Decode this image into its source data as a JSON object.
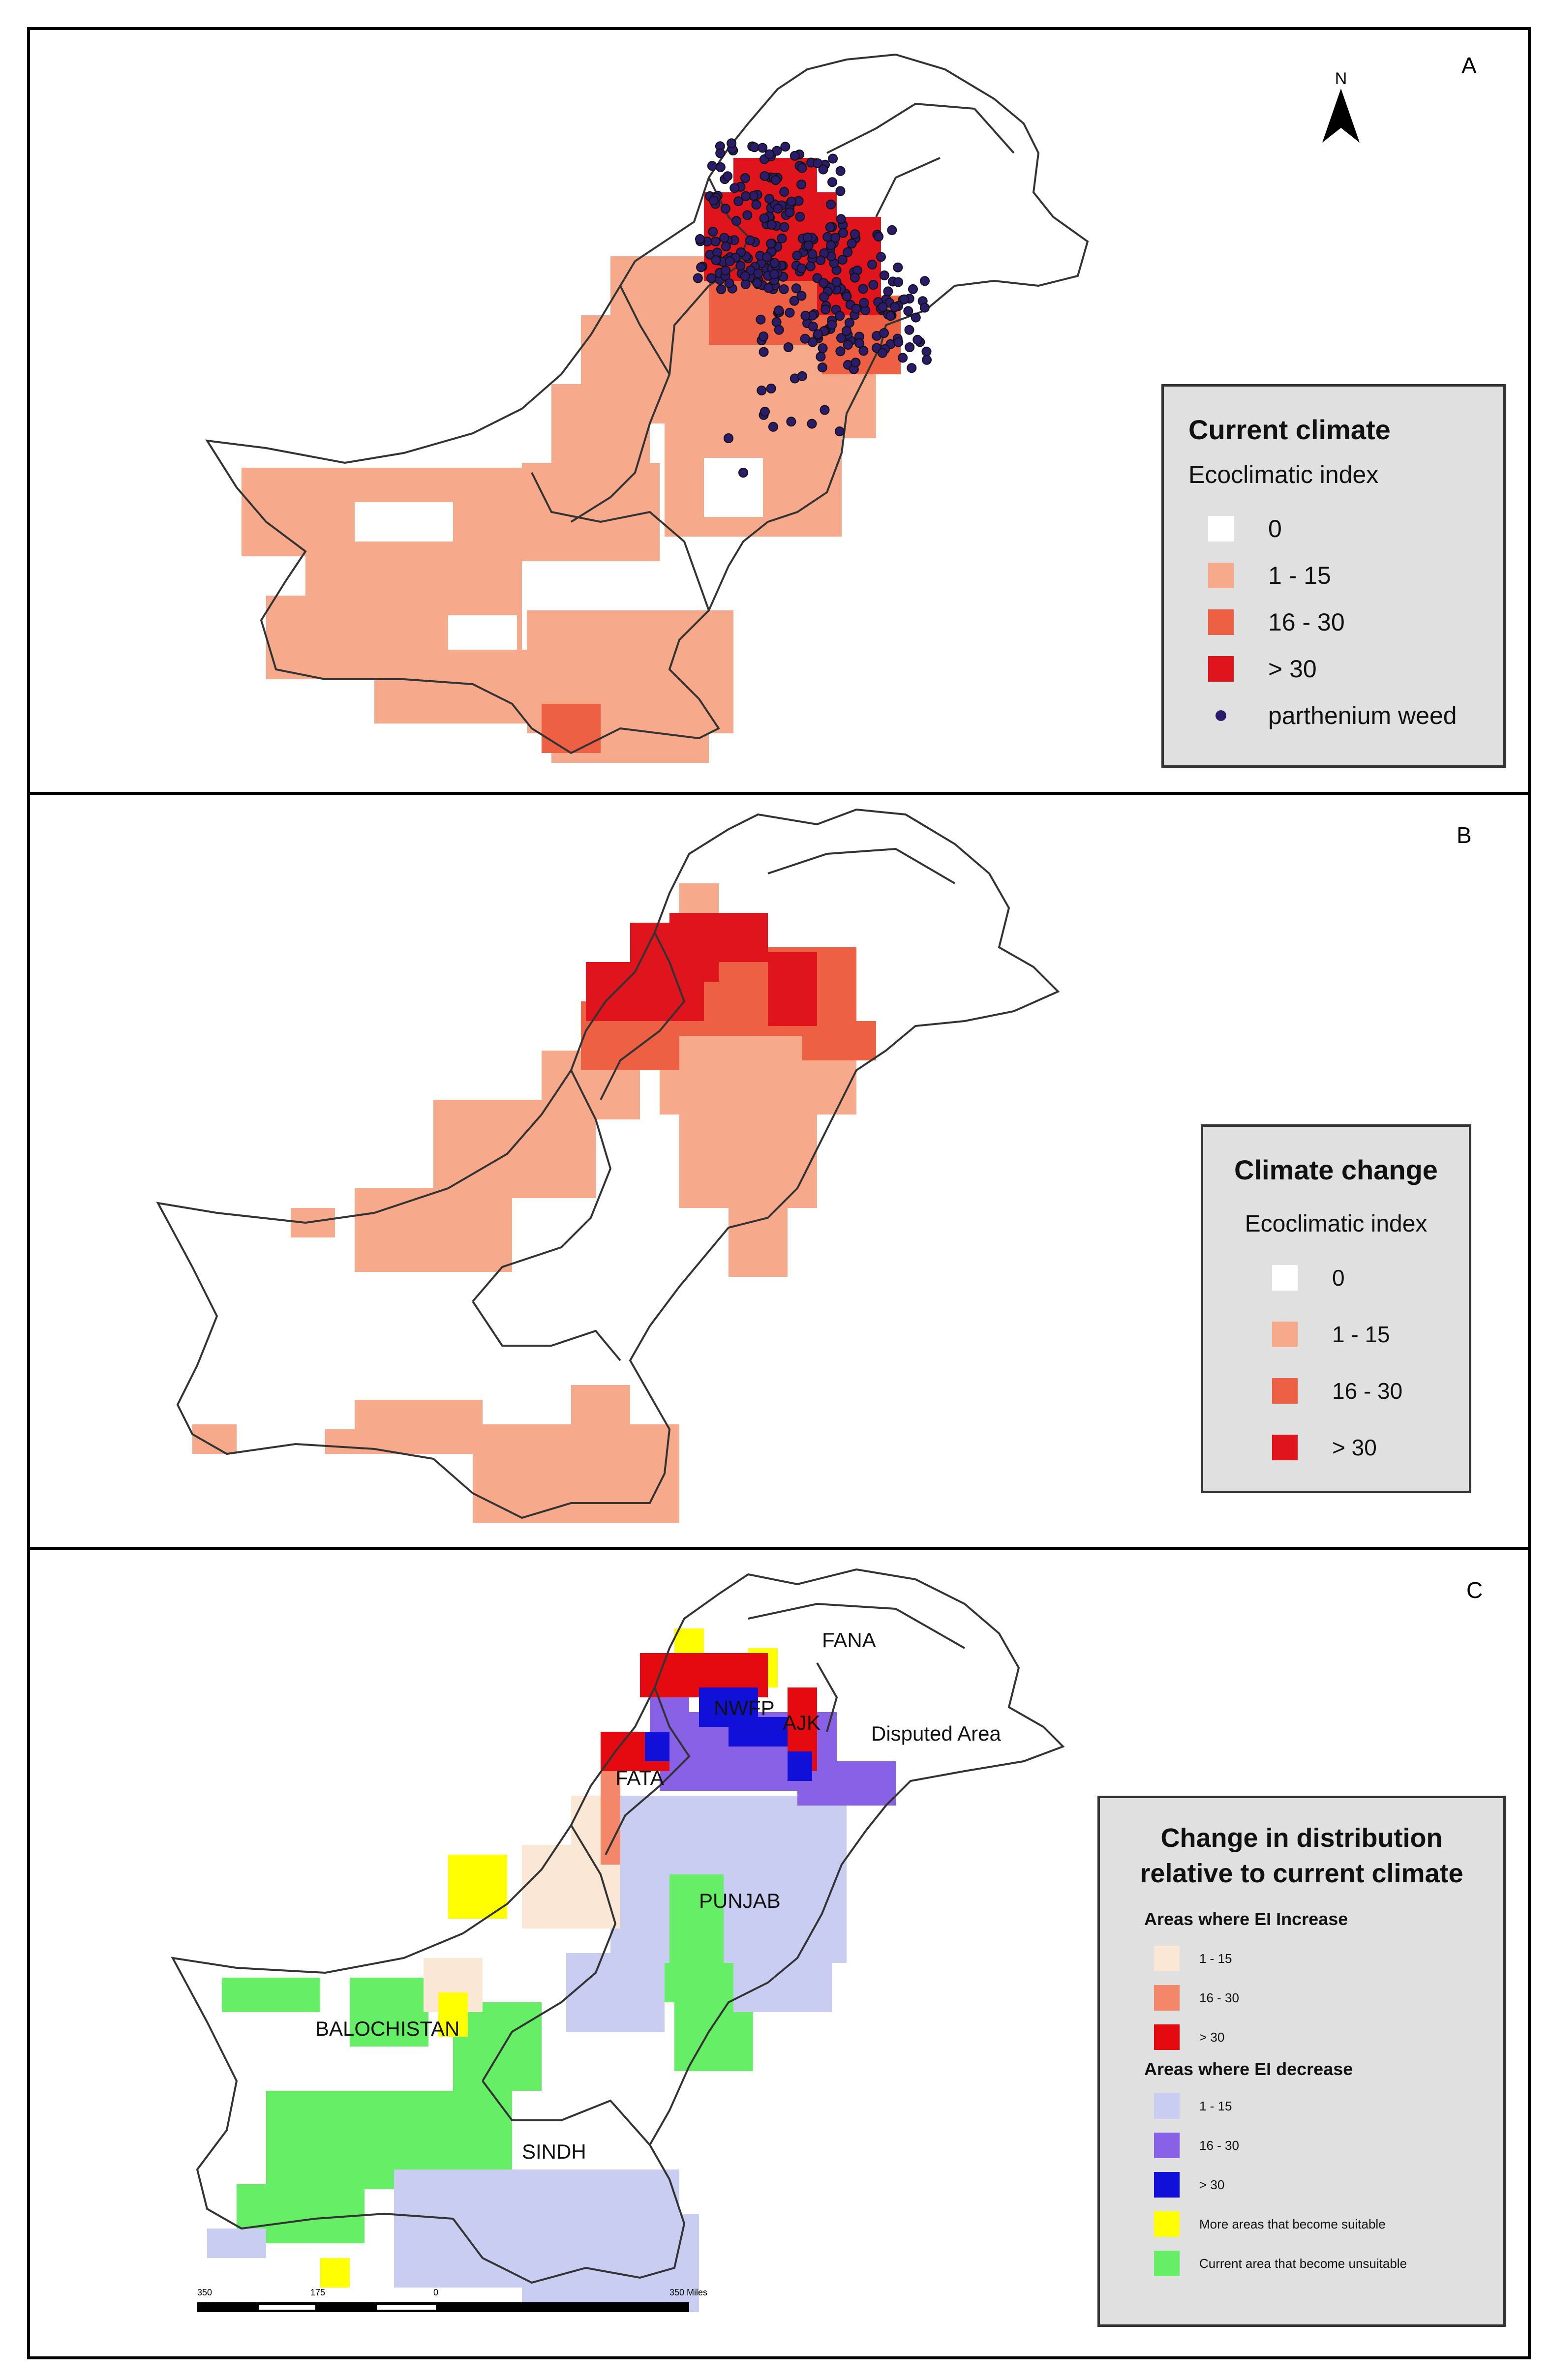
{
  "colors": {
    "zero": "#ffffff",
    "low": "#f7a98b",
    "mid": "#ee6044",
    "high": "#e0141c",
    "weed": "#2c1b6b",
    "inc_low": "#fbe7d6",
    "inc_mid": "#f4866a",
    "inc_high": "#e40a10",
    "dec_low": "#c9cdf1",
    "dec_mid": "#8861e6",
    "dec_high": "#1010d8",
    "more_suitable": "#ffff00",
    "become_unsuitable": "#66ee66"
  },
  "panel_a": {
    "letter": "A",
    "north_label": "N",
    "legend": {
      "title": "Current climate",
      "subtitle": "Ecoclimatic index",
      "items": [
        {
          "label": "0",
          "color": "#ffffff"
        },
        {
          "label": "1 - 15",
          "color": "#f7a98b"
        },
        {
          "label": "16 - 30",
          "color": "#ee6044"
        },
        {
          "label": "> 30",
          "color": "#e0141c"
        },
        {
          "label": "parthenium weed",
          "color": "#2c1b6b"
        }
      ]
    }
  },
  "panel_b": {
    "letter": "B",
    "legend": {
      "title": "Climate change",
      "subtitle": "Ecoclimatic index",
      "items": [
        {
          "label": "0",
          "color": "#ffffff"
        },
        {
          "label": "1 - 15",
          "color": "#f7a98b"
        },
        {
          "label": "16 - 30",
          "color": "#ee6044"
        },
        {
          "label": "> 30",
          "color": "#e0141c"
        }
      ]
    }
  },
  "panel_c": {
    "letter": "C",
    "regions": {
      "fana": "FANA",
      "nwfp": "NWFP",
      "ajk": "AJK",
      "disputed": "Disputed Area",
      "fata": "FATA",
      "punjab": "PUNJAB",
      "balochistan": "BALOCHISTAN",
      "sindh": "SINDH"
    },
    "legend": {
      "title_line1": "Change in distribution",
      "title_line2": "relative to current climate",
      "increase_header": "Areas where EI  Increase",
      "increase_items": [
        {
          "label": "1 - 15",
          "color": "#fbe7d6"
        },
        {
          "label": "16 - 30",
          "color": "#f4866a"
        },
        {
          "label": "> 30",
          "color": "#e40a10"
        }
      ],
      "decrease_header": "Areas where EI decrease",
      "decrease_items": [
        {
          "label": "1 - 15",
          "color": "#c9cdf1"
        },
        {
          "label": "16 - 30",
          "color": "#8861e6"
        },
        {
          "label": "> 30",
          "color": "#1010d8"
        },
        {
          "label": "More areas that become suitable",
          "color": "#ffff00"
        },
        {
          "label": "Current area that become unsuitable",
          "color": "#66ee66"
        }
      ]
    },
    "scale": {
      "ticks": [
        "350",
        "175",
        "0",
        "350 Miles"
      ]
    }
  }
}
